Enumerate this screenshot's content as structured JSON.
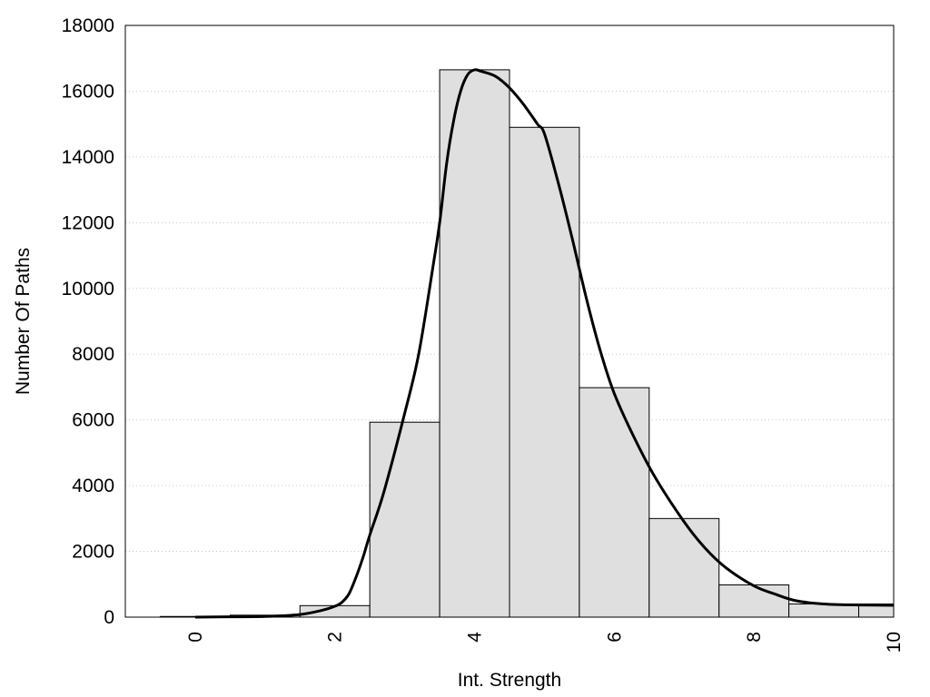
{
  "chart_data": {
    "type": "bar",
    "title": "",
    "xlabel": "Int. Strength",
    "ylabel": "Number Of Paths",
    "xlim": [
      -1,
      10
    ],
    "ylim": [
      0,
      18000
    ],
    "xticks": [
      "0",
      "2",
      "4",
      "6",
      "8",
      "10"
    ],
    "yticks": [
      "0",
      "2000",
      "4000",
      "6000",
      "8000",
      "10000",
      "12000",
      "14000",
      "16000",
      "18000"
    ],
    "grid": "horizontal dotted",
    "legend": "none",
    "bars": {
      "bin_centers": [
        0,
        1,
        2,
        3,
        4,
        5,
        6,
        7,
        8,
        9,
        10
      ],
      "bin_width": 1,
      "values": [
        20,
        60,
        350,
        5930,
        16650,
        14900,
        6980,
        3000,
        980,
        400,
        400
      ],
      "fill": "#dfdfdf",
      "stroke": "#000000"
    },
    "curve": {
      "x": [
        0,
        0.5,
        1,
        1.5,
        1.8,
        2,
        2.1,
        2.2,
        2.3,
        2.4,
        2.5,
        2.7,
        3,
        3.2,
        3.4,
        3.5,
        3.6,
        3.7,
        3.8,
        3.9,
        4,
        4.1,
        4.3,
        4.5,
        4.7,
        4.9,
        5,
        5.2,
        5.4,
        5.6,
        5.8,
        6,
        6.3,
        6.6,
        7,
        7.3,
        7.6,
        8,
        8.3,
        8.6,
        9,
        9.5,
        10
      ],
      "y": [
        0,
        10,
        20,
        80,
        200,
        330,
        450,
        700,
        1200,
        1800,
        2500,
        3800,
        6200,
        8000,
        10600,
        12000,
        13800,
        15100,
        16000,
        16500,
        16650,
        16600,
        16450,
        16100,
        15600,
        15000,
        14700,
        13200,
        11500,
        9700,
        8100,
        6800,
        5400,
        4200,
        2900,
        2100,
        1500,
        950,
        700,
        500,
        400,
        370,
        360
      ],
      "color": "#000000"
    }
  }
}
